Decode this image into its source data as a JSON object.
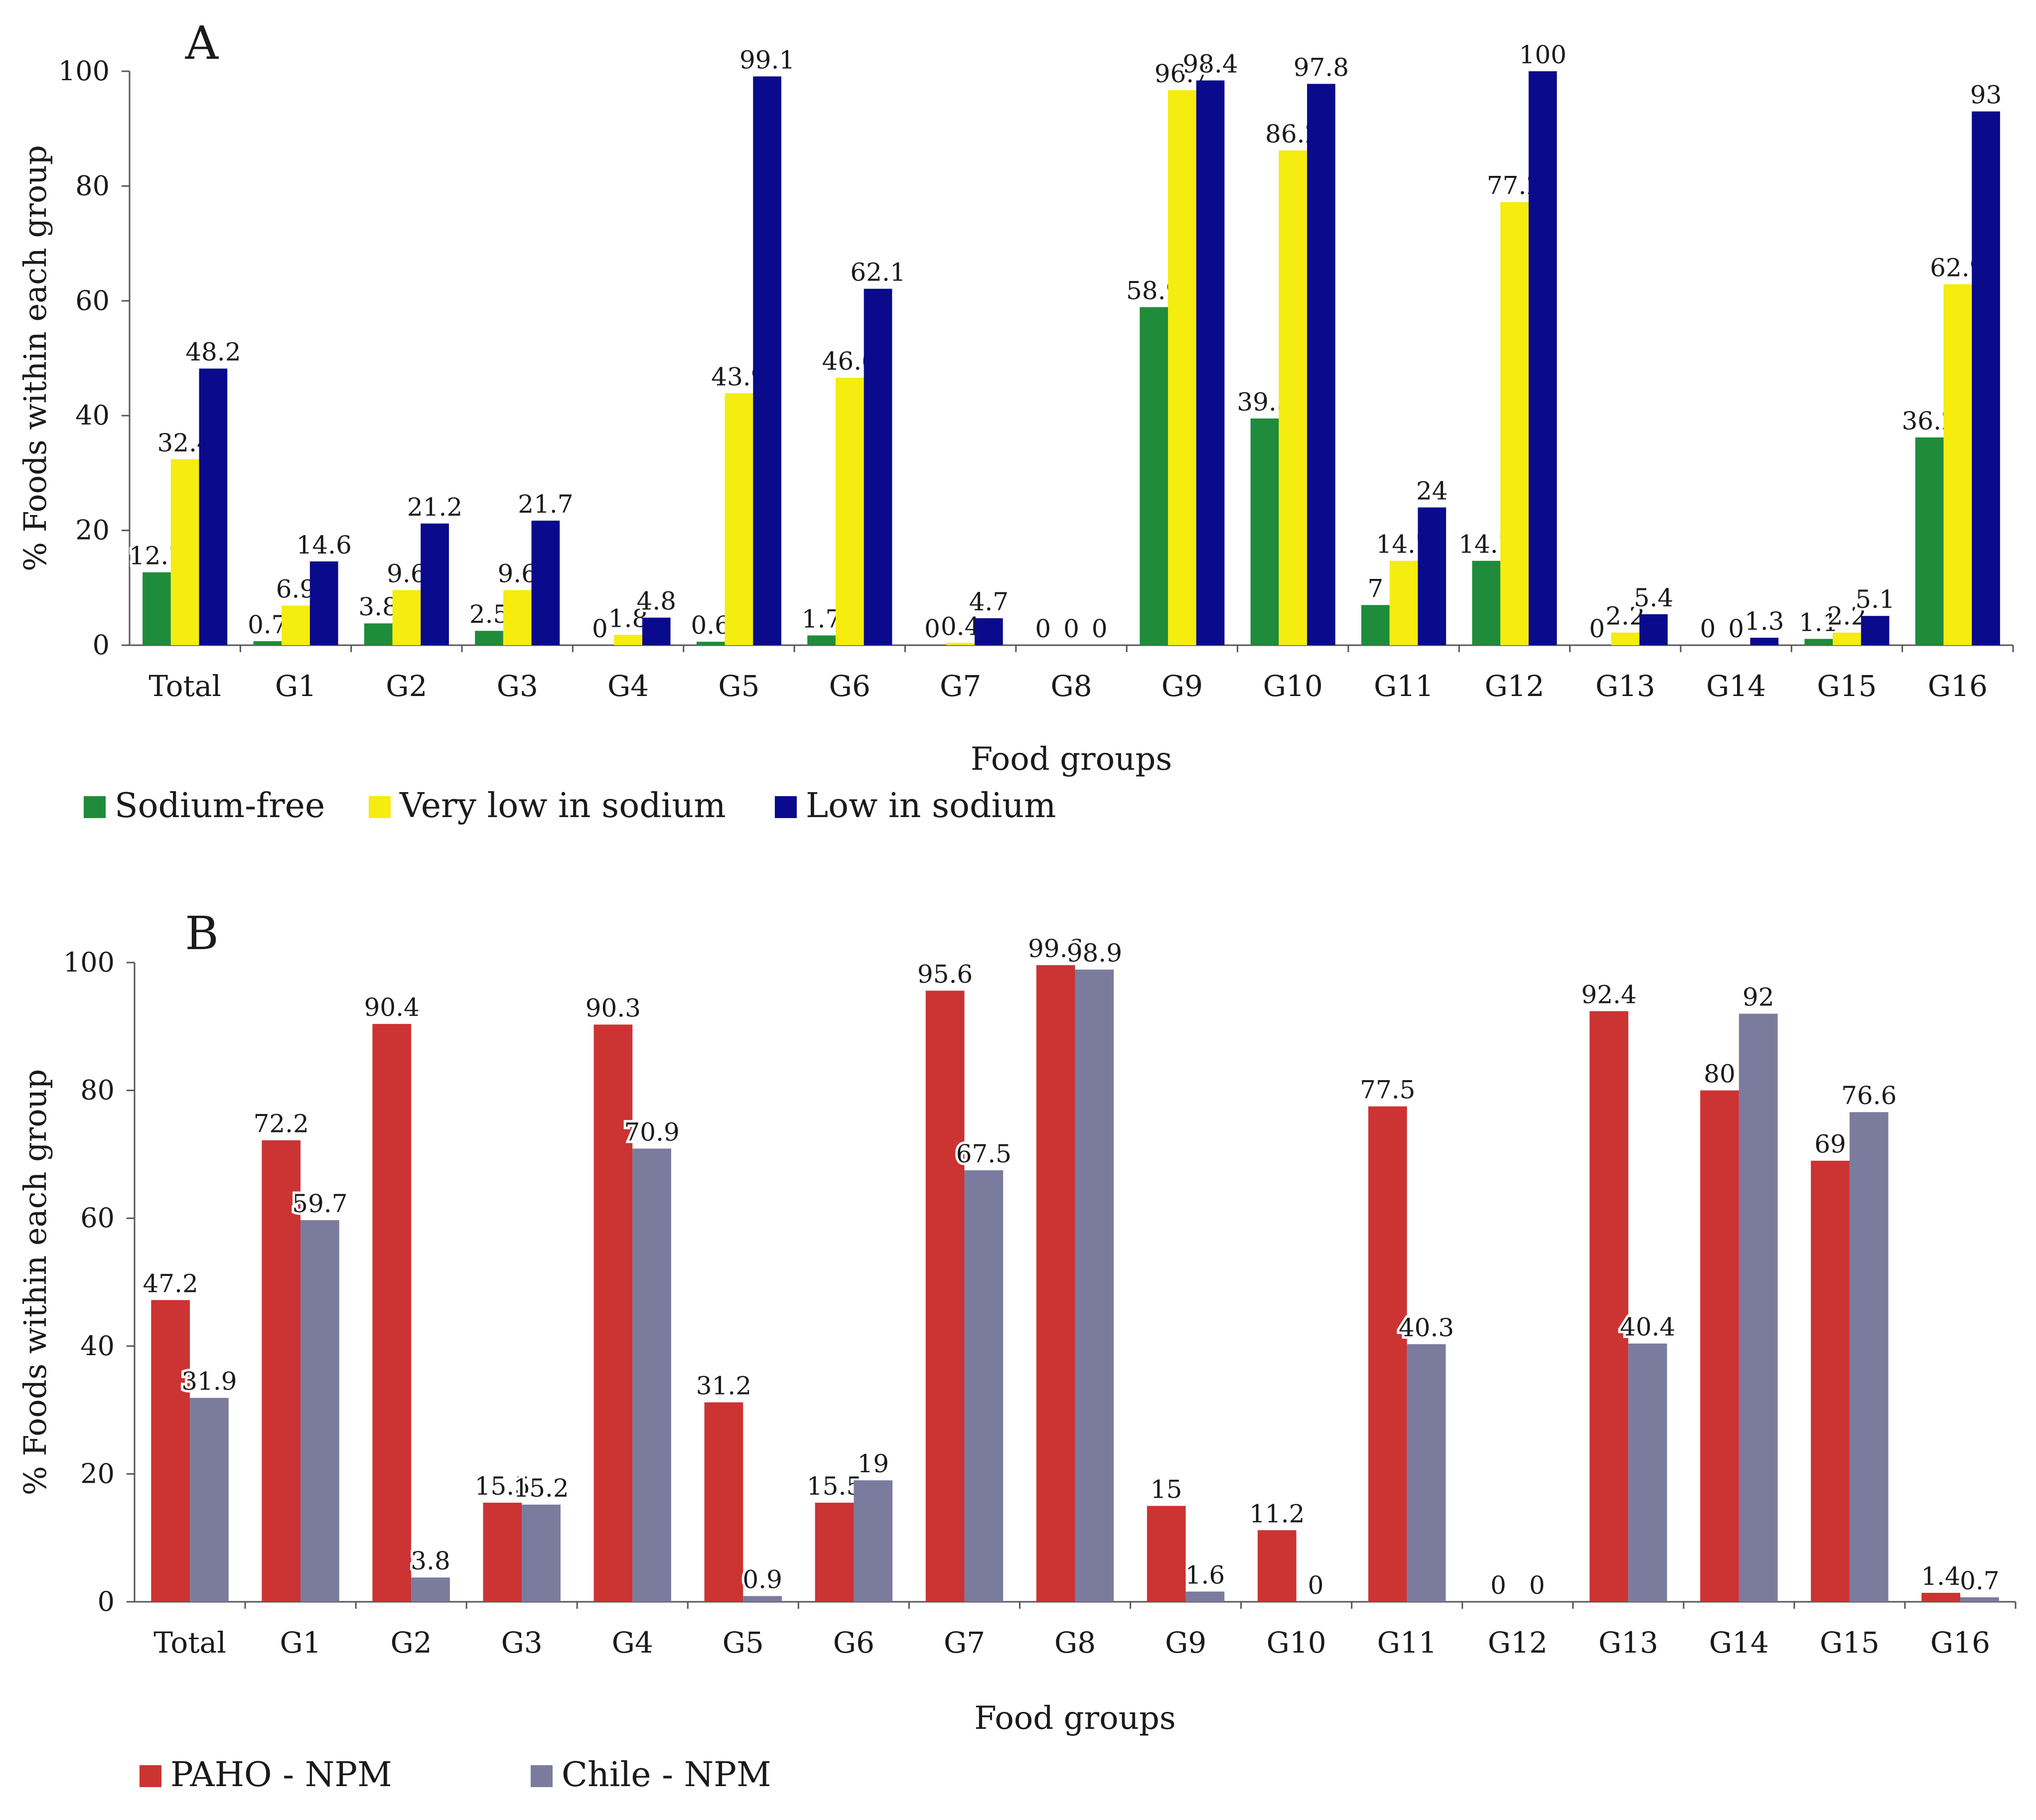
{
  "chart_data": [
    {
      "panel": "A",
      "type": "bar",
      "xlabel": "Food groups",
      "ylabel": "% Foods within each group",
      "ylim": [
        0,
        100
      ],
      "yticks": [
        "0",
        "20",
        "40",
        "60",
        "80",
        "100"
      ],
      "legend_position": "bottom-left",
      "categories": [
        "Total",
        "G1",
        "G2",
        "G3",
        "G4",
        "G5",
        "G6",
        "G7",
        "G8",
        "G9",
        "G10",
        "G11",
        "G12",
        "G13",
        "G14",
        "G15",
        "G16"
      ],
      "series": [
        {
          "name": "Sodium-free",
          "color": "#1e8c3a",
          "values": [
            12.7,
            0.7,
            3.8,
            2.5,
            0,
            0.6,
            1.7,
            0,
            0,
            58.9,
            39.5,
            7,
            14.7,
            0,
            0,
            1.1,
            36.2
          ]
        },
        {
          "name": "Very low in sodium",
          "color": "#f5ec10",
          "values": [
            32.4,
            6.9,
            9.6,
            9.6,
            1.8,
            43.9,
            46.6,
            0.4,
            0,
            96.7,
            86.2,
            14.7,
            77.2,
            2.2,
            0,
            2.2,
            62.9
          ]
        },
        {
          "name": "Low in sodium",
          "color": "#0a0a8c",
          "values": [
            48.2,
            14.6,
            21.2,
            21.7,
            4.8,
            99.1,
            62.1,
            4.7,
            0,
            98.4,
            97.8,
            24,
            100,
            5.4,
            1.3,
            5.1,
            93
          ]
        }
      ]
    },
    {
      "panel": "B",
      "type": "bar",
      "xlabel": "Food groups",
      "ylabel": "% Foods within each group",
      "ylim": [
        0,
        100
      ],
      "yticks": [
        "0",
        "20",
        "40",
        "60",
        "80",
        "100"
      ],
      "legend_position": "bottom-left",
      "categories": [
        "Total",
        "G1",
        "G2",
        "G3",
        "G4",
        "G5",
        "G6",
        "G7",
        "G8",
        "G9",
        "G10",
        "G11",
        "G12",
        "G13",
        "G14",
        "G15",
        "G16"
      ],
      "series": [
        {
          "name": "PAHO - NPM",
          "color": "#cc3333",
          "values": [
            47.2,
            72.2,
            90.4,
            15.5,
            90.3,
            31.2,
            15.5,
            95.6,
            99.6,
            15,
            11.2,
            77.5,
            0,
            92.4,
            80,
            69,
            1.4
          ]
        },
        {
          "name": "Chile - NPM",
          "color": "#7b7b9e",
          "values": [
            31.9,
            59.7,
            3.8,
            15.2,
            70.9,
            0.9,
            19,
            67.5,
            98.9,
            1.6,
            0,
            40.3,
            0,
            40.4,
            92,
            76.6,
            0.7
          ]
        }
      ]
    }
  ]
}
